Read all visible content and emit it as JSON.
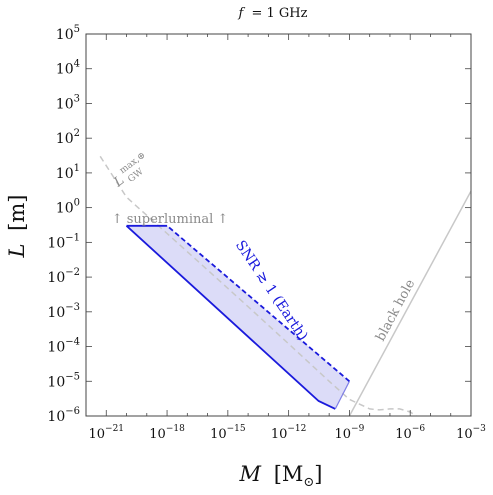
{
  "chart_data": {
    "type": "line",
    "title_prefix": "f",
    "title_value": "= 1 GHz",
    "xlabel_var": "M",
    "xlabel_unit": "[M",
    "xlabel_unit_sub": "⊙",
    "xlabel_unit_close": "]",
    "ylabel_var": "L",
    "ylabel_unit": "[m]",
    "xscale": "log",
    "yscale": "log",
    "xlim": [
      1e-22,
      0.001
    ],
    "ylim": [
      1e-06,
      100000.0
    ],
    "x_ticks": [
      {
        "value": 1e-21,
        "base": "10",
        "exp": "−21"
      },
      {
        "value": 1e-18,
        "base": "10",
        "exp": "−18"
      },
      {
        "value": 1e-15,
        "base": "10",
        "exp": "−15"
      },
      {
        "value": 1e-12,
        "base": "10",
        "exp": "−12"
      },
      {
        "value": 1e-09,
        "base": "10",
        "exp": "−9"
      },
      {
        "value": 1e-06,
        "base": "10",
        "exp": "−6"
      },
      {
        "value": 0.001,
        "base": "10",
        "exp": "−3"
      }
    ],
    "y_ticks": [
      {
        "value": 100000.0,
        "base": "10",
        "exp": "5"
      },
      {
        "value": 10000.0,
        "base": "10",
        "exp": "4"
      },
      {
        "value": 1000.0,
        "base": "10",
        "exp": "3"
      },
      {
        "value": 100.0,
        "base": "10",
        "exp": "2"
      },
      {
        "value": 10.0,
        "base": "10",
        "exp": "1"
      },
      {
        "value": 1.0,
        "base": "10",
        "exp": "0"
      },
      {
        "value": 0.1,
        "base": "10",
        "exp": "−1"
      },
      {
        "value": 0.01,
        "base": "10",
        "exp": "−2"
      },
      {
        "value": 0.001,
        "base": "10",
        "exp": "−3"
      },
      {
        "value": 0.0001,
        "base": "10",
        "exp": "−4"
      },
      {
        "value": 1e-05,
        "base": "10",
        "exp": "−5"
      },
      {
        "value": 1e-06,
        "base": "10",
        "exp": "−6"
      }
    ],
    "series": [
      {
        "label_main": "L",
        "label_sup": "max,⊕",
        "label_sub": "GW",
        "style": "dashed",
        "color": "#c8c8c8",
        "x": [
          5e-22,
          1e-20,
          1e-18,
          1e-16,
          1e-14,
          1e-12,
          1e-10,
          1e-09,
          1e-08,
          3e-08,
          1e-07,
          3e-07,
          1e-06,
          2e-06
        ],
        "y": [
          30,
          2.0,
          0.18,
          0.016,
          0.0014,
          0.00012,
          1e-05,
          3e-06,
          1.6e-06,
          1.5e-06,
          1.6e-06,
          1.6e-06,
          1.3e-06,
          1e-06
        ]
      },
      {
        "label": "black hole",
        "style": "solid",
        "color": "#c8c8c8",
        "x": [
          1e-09,
          0.001
        ],
        "y": [
          1e-06,
          3.0
        ]
      },
      {
        "label": "SNR ≳ 1 (Earth)",
        "style": "filled-region",
        "color": "#1a1adc",
        "fill": "#dcdcf8",
        "solid_edge_x": [
          2e-17,
          1e-20,
          1e-20,
          1e-18,
          1e-18
        ],
        "solid_edge_y": [
          0.3,
          0.3,
          0.3,
          0.3,
          0.3
        ],
        "lower_edge_x": [
          1e-20,
          3e-11,
          2e-10
        ],
        "lower_edge_y": [
          0.3,
          2.7e-06,
          1.6e-06
        ],
        "right_edge_x": [
          2e-10,
          1e-09
        ],
        "right_edge_y": [
          1.6e-06,
          1e-05
        ],
        "dashed_edge_x": [
          1e-09,
          1e-18
        ],
        "dashed_edge_y": [
          1e-05,
          0.3
        ]
      }
    ],
    "annotations": {
      "superluminal": "↑ superluminal ↑",
      "black_hole": "black hole",
      "snr": "SNR ≳ 1 (Earth)"
    },
    "grid": false
  }
}
